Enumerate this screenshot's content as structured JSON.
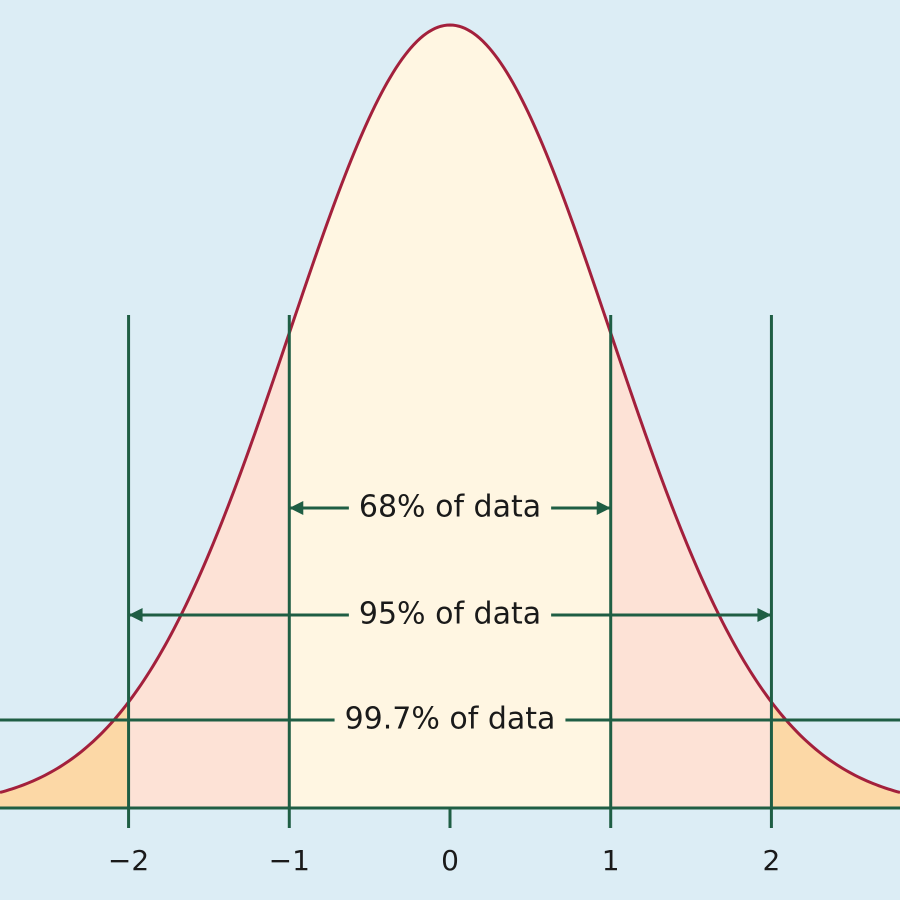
{
  "chart_data": {
    "type": "normal",
    "xlim": [
      -2.8,
      2.8
    ],
    "xticks": [
      {
        "value": -2,
        "label": "−2"
      },
      {
        "value": -1,
        "label": "−1"
      },
      0,
      1,
      2
    ],
    "annotations": [
      {
        "text": "68% of data",
        "span": [
          -1,
          1
        ]
      },
      {
        "text": "95% of data",
        "span": [
          -2,
          2
        ]
      },
      {
        "text": "99.7% of data",
        "span": [
          -3,
          3
        ]
      }
    ],
    "curve_color": "#a3203c",
    "marker_color": "#1f5e44",
    "colors": [
      "#fff6e2",
      "#fde2d6",
      "#fcd8a6"
    ]
  }
}
